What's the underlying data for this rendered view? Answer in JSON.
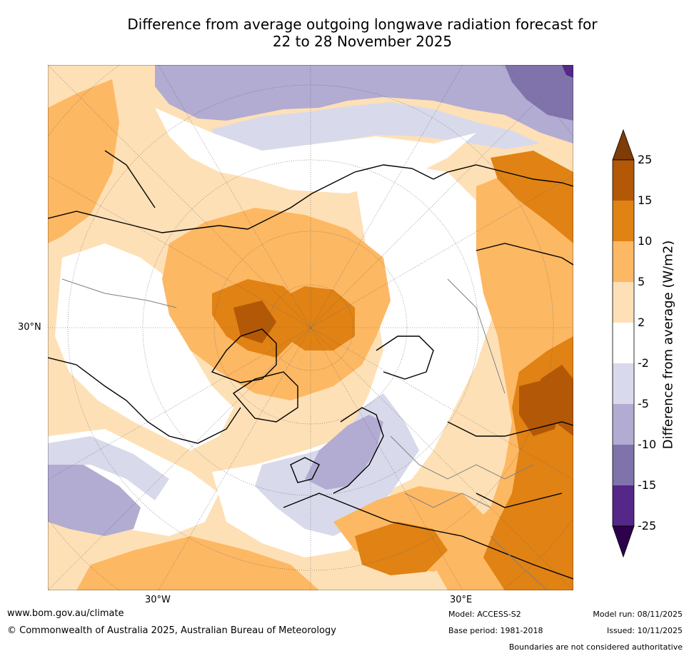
{
  "title": {
    "line1": "Difference from average outgoing longwave radiation forecast for",
    "line2": "22 to 28 November 2025"
  },
  "map": {
    "projection_labels": {
      "lat_30n": "30°N",
      "lon_30w": "30°W",
      "lon_30e": "30°E"
    },
    "background": "#ffffff",
    "land_outline_color": "#000000",
    "border_color": "#808080"
  },
  "colorbar": {
    "title": "Difference from average (W/m2)",
    "ticks": [
      "25",
      "15",
      "10",
      "5",
      "2",
      "-2",
      "-5",
      "-10",
      "-15",
      "-25"
    ],
    "colors": {
      "over": "#7f3b08",
      "c15_25": "#b35806",
      "c10_15": "#e08214",
      "c5_10": "#fdb863",
      "c2_5": "#fee0b6",
      "neutral": "#ffffff",
      "m2_m5": "#d8daeb",
      "m5_m10": "#b2abd2",
      "m10_m15": "#8073ac",
      "m15_m25": "#542788",
      "under": "#2d004b"
    }
  },
  "footer": {
    "url": "www.bom.gov.au/climate",
    "copyright": "© Commonwealth of Australia 2025, Australian Bureau of Meteorology",
    "model": "Model: ACCESS-S2",
    "base_period": "Base period: 1981-2018",
    "model_run": "Model run: 08/11/2025",
    "issued": "Issued: 10/11/2025",
    "disclaimer": "Boundaries are not considered authoritative"
  }
}
